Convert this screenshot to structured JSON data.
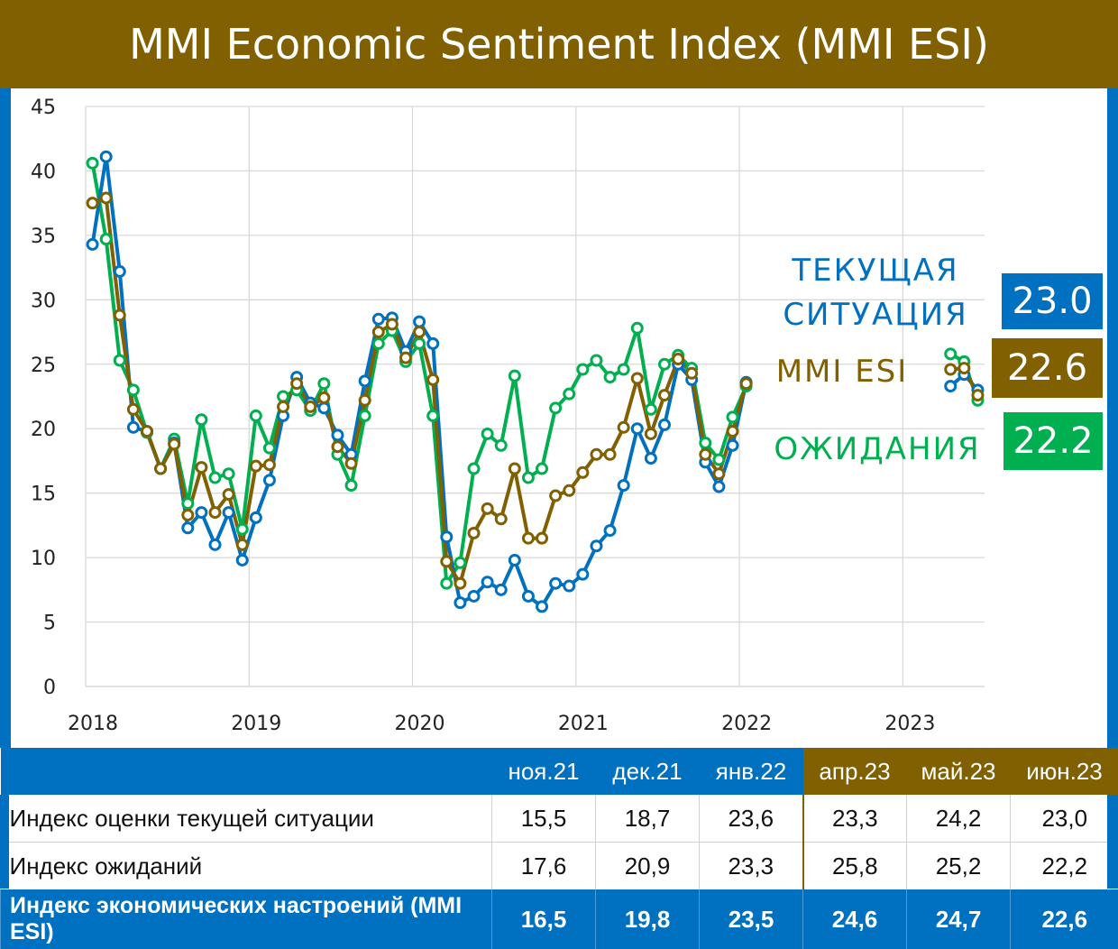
{
  "title": "MMI Economic Sentiment Index (MMI ESI)",
  "colors": {
    "current": "#0070c0",
    "esi": "#806000",
    "expect": "#00b050"
  },
  "labels": {
    "current_line1": "ТЕКУЩАЯ",
    "current_line2": "СИТУАЦИЯ",
    "esi": "MMI ESI",
    "expect": "ОЖИДАНИЯ",
    "current_value": "23.0",
    "esi_value": "22.6",
    "expect_value": "22.2"
  },
  "chart_data": {
    "type": "line",
    "ylim": [
      0,
      45
    ],
    "yticks": [
      "0",
      "5",
      "10",
      "15",
      "20",
      "25",
      "30",
      "35",
      "40",
      "45"
    ],
    "xlim": [
      2018,
      2023.5
    ],
    "xticks": [
      "2018",
      "2019",
      "2020",
      "2021",
      "2022",
      "2023"
    ],
    "series": [
      {
        "name": "ТЕКУЩАЯ СИТУАЦИЯ",
        "color": "#0070c0",
        "segments": [
          {
            "x_start": 2018.0417,
            "step": 0.08333,
            "values": [
              34.3,
              41.1,
              32.2,
              20.1,
              19.8,
              16.9,
              18.9,
              12.3,
              13.5,
              11.0,
              13.5,
              9.8,
              13.1,
              16.0,
              21.0,
              24.0,
              22.0,
              21.6,
              19.5,
              18.0,
              23.7,
              28.5,
              28.6,
              26.0,
              28.3,
              26.6,
              11.6,
              6.5,
              7.0,
              8.1,
              7.5,
              9.8,
              7.0,
              6.2,
              8.0,
              7.8,
              8.7,
              10.9,
              12.1,
              15.6,
              20.0,
              17.7,
              20.3,
              25.0,
              23.8,
              17.4,
              15.5,
              18.7,
              23.6
            ]
          },
          {
            "x_start": 2023.2917,
            "step": 0.08333,
            "values": [
              23.3,
              24.2,
              23.0
            ]
          }
        ]
      },
      {
        "name": "MMI ESI",
        "color": "#806000",
        "segments": [
          {
            "x_start": 2018.0417,
            "step": 0.08333,
            "values": [
              37.5,
              37.9,
              28.8,
              21.5,
              19.8,
              16.9,
              18.8,
              13.3,
              17.0,
              13.5,
              14.9,
              11.0,
              17.1,
              17.2,
              21.7,
              23.5,
              21.7,
              22.4,
              18.6,
              17.3,
              22.2,
              27.5,
              28.1,
              25.5,
              27.5,
              23.8,
              9.7,
              8.0,
              11.9,
              13.8,
              13.0,
              16.9,
              11.5,
              11.5,
              14.8,
              15.2,
              16.6,
              18.0,
              18.0,
              20.1,
              23.9,
              19.6,
              22.6,
              25.4,
              24.3,
              18.0,
              16.5,
              19.8,
              23.5
            ]
          },
          {
            "x_start": 2023.2917,
            "step": 0.08333,
            "values": [
              24.6,
              24.7,
              22.6
            ]
          }
        ]
      },
      {
        "name": "ОЖИДАНИЯ",
        "color": "#00b050",
        "segments": [
          {
            "x_start": 2018.0417,
            "step": 0.08333,
            "values": [
              40.6,
              34.7,
              25.3,
              23.0,
              19.7,
              16.9,
              19.2,
              14.2,
              20.7,
              16.2,
              16.5,
              12.2,
              21.0,
              18.5,
              22.5,
              23.0,
              21.4,
              23.5,
              18.0,
              15.6,
              21.0,
              26.6,
              27.6,
              25.2,
              26.6,
              21.0,
              8.0,
              9.6,
              16.9,
              19.6,
              18.7,
              24.1,
              16.2,
              16.9,
              21.6,
              22.7,
              24.6,
              25.3,
              24.0,
              24.6,
              27.8,
              21.5,
              25.0,
              25.7,
              24.7,
              18.9,
              17.6,
              20.9,
              23.3
            ]
          },
          {
            "x_start": 2023.2917,
            "step": 0.08333,
            "values": [
              25.8,
              25.2,
              22.2
            ]
          }
        ]
      }
    ]
  },
  "table": {
    "columns": [
      "ноя.21",
      "дек.21",
      "янв.22",
      "апр.23",
      "май.23",
      "июн.23"
    ],
    "rows": [
      {
        "label": "Индекс оценки текущей ситуации",
        "values": [
          "15,5",
          "18,7",
          "23,6",
          "23,3",
          "24,2",
          "23,0"
        ]
      },
      {
        "label": "Индекс ожиданий",
        "values": [
          "17,6",
          "20,9",
          "23,3",
          "25,8",
          "25,2",
          "22,2"
        ]
      },
      {
        "label": "Индекс экономических настроений (MMI ESI)",
        "values": [
          "16,5",
          "19,8",
          "23,5",
          "24,6",
          "24,7",
          "22,6"
        ]
      }
    ]
  }
}
